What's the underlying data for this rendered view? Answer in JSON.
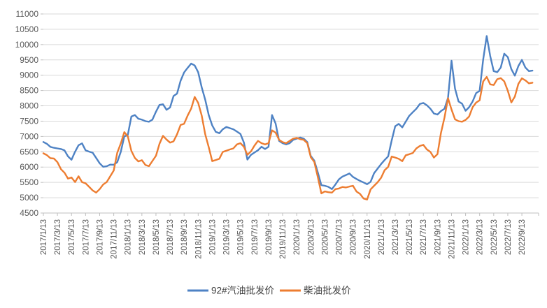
{
  "chart_data": {
    "type": "line",
    "title": "",
    "grid": true,
    "legend_position": "bottom",
    "x_axis": {
      "start": "2017/1/13",
      "sampling": "semi-monthly (2 points per month, est. from pixels)",
      "tick_labels": [
        "2017/1/13",
        "2017/3/13",
        "2017/5/13",
        "2017/7/13",
        "2017/9/13",
        "2017/11/13",
        "2018/1/13",
        "2018/3/13",
        "2018/5/13",
        "2018/7/13",
        "2018/9/13",
        "2018/11/13",
        "2019/1/13",
        "2019/3/13",
        "2019/5/13",
        "2019/7/13",
        "2019/9/13",
        "2019/11/13",
        "2020/1/13",
        "2020/3/13",
        "2020/5/13",
        "2020/7/13",
        "2020/9/13",
        "2020/11/13",
        "2021/1/13",
        "2021/3/13",
        "2021/5/13",
        "2021/7/13",
        "2021/9/13",
        "2021/11/13",
        "2022/1/13",
        "2022/3/13",
        "2022/5/13",
        "2022/7/13",
        "2022/9/13"
      ]
    },
    "y_axis": {
      "min": 4500,
      "max": 11000,
      "step": 500,
      "tick_labels": [
        "4500",
        "5000",
        "5500",
        "6000",
        "6500",
        "7000",
        "7500",
        "8000",
        "8500",
        "9000",
        "9500",
        "10000",
        "10500",
        "11000"
      ]
    },
    "series": [
      {
        "name": "92#汽油批发价",
        "color": "#4e82c4",
        "values": [
          6820,
          6760,
          6660,
          6630,
          6610,
          6590,
          6545,
          6350,
          6240,
          6500,
          6715,
          6775,
          6545,
          6505,
          6470,
          6300,
          6125,
          6010,
          6025,
          6080,
          6075,
          6160,
          6500,
          7000,
          7050,
          7650,
          7700,
          7580,
          7550,
          7500,
          7480,
          7550,
          7810,
          8030,
          8050,
          7870,
          7945,
          8320,
          8400,
          8820,
          9090,
          9240,
          9380,
          9320,
          9100,
          8600,
          8200,
          7700,
          7360,
          7150,
          7105,
          7235,
          7310,
          7270,
          7235,
          7160,
          7085,
          6800,
          6245,
          6400,
          6475,
          6550,
          6665,
          6590,
          6665,
          7700,
          7425,
          6855,
          6780,
          6740,
          6780,
          6890,
          6930,
          6965,
          6930,
          6815,
          6360,
          6210,
          5830,
          5410,
          5390,
          5355,
          5280,
          5430,
          5600,
          5690,
          5740,
          5790,
          5680,
          5610,
          5550,
          5500,
          5440,
          5520,
          5800,
          5950,
          6100,
          6230,
          6350,
          6875,
          7335,
          7410,
          7295,
          7485,
          7675,
          7790,
          7905,
          8060,
          8095,
          8020,
          7905,
          7750,
          7715,
          7830,
          7905,
          8260,
          9475,
          8565,
          8145,
          8070,
          7840,
          7955,
          8145,
          8415,
          8490,
          9520,
          10280,
          9630,
          9135,
          9100,
          9250,
          9705,
          9590,
          9200,
          8985,
          9300,
          9500,
          9250,
          9135,
          9150
        ]
      },
      {
        "name": "柴油批发价",
        "color": "#ed7d31",
        "values": [
          6450,
          6390,
          6290,
          6280,
          6160,
          5930,
          5815,
          5625,
          5660,
          5510,
          5700,
          5510,
          5470,
          5355,
          5240,
          5165,
          5280,
          5430,
          5510,
          5700,
          5890,
          6465,
          6775,
          7140,
          7005,
          6530,
          6300,
          6185,
          6225,
          6070,
          6030,
          6200,
          6370,
          6760,
          7020,
          6900,
          6800,
          6840,
          7070,
          7375,
          7415,
          7680,
          7910,
          8290,
          8100,
          7680,
          7070,
          6650,
          6195,
          6230,
          6270,
          6495,
          6535,
          6575,
          6610,
          6740,
          6780,
          6665,
          6400,
          6515,
          6700,
          6855,
          6780,
          6740,
          6780,
          7200,
          7125,
          6890,
          6815,
          6780,
          6855,
          6930,
          6955,
          6910,
          6890,
          6780,
          6320,
          6170,
          5680,
          5140,
          5205,
          5180,
          5165,
          5280,
          5300,
          5350,
          5335,
          5365,
          5390,
          5200,
          5125,
          4975,
          4940,
          5270,
          5390,
          5505,
          5655,
          5900,
          6005,
          6345,
          6310,
          6270,
          6195,
          6385,
          6420,
          6460,
          6610,
          6690,
          6725,
          6575,
          6495,
          6310,
          6420,
          7115,
          7610,
          8250,
          7880,
          7560,
          7500,
          7480,
          7540,
          7650,
          7955,
          8105,
          8180,
          8800,
          8945,
          8700,
          8680,
          8870,
          8905,
          8800,
          8490,
          8110,
          8300,
          8720,
          8900,
          8830,
          8735,
          8755
        ]
      }
    ]
  },
  "legend": {
    "gasoline_label": "92#汽油批发价",
    "diesel_label": "柴油批发价"
  },
  "colors": {
    "gasoline_line": "#4e82c4",
    "diesel_line": "#ed7d31",
    "gridline": "#d9d9d9",
    "axis_line": "#bfbfbf",
    "axis_label": "#595959",
    "legend_text": "#404040",
    "background": "#ffffff"
  }
}
